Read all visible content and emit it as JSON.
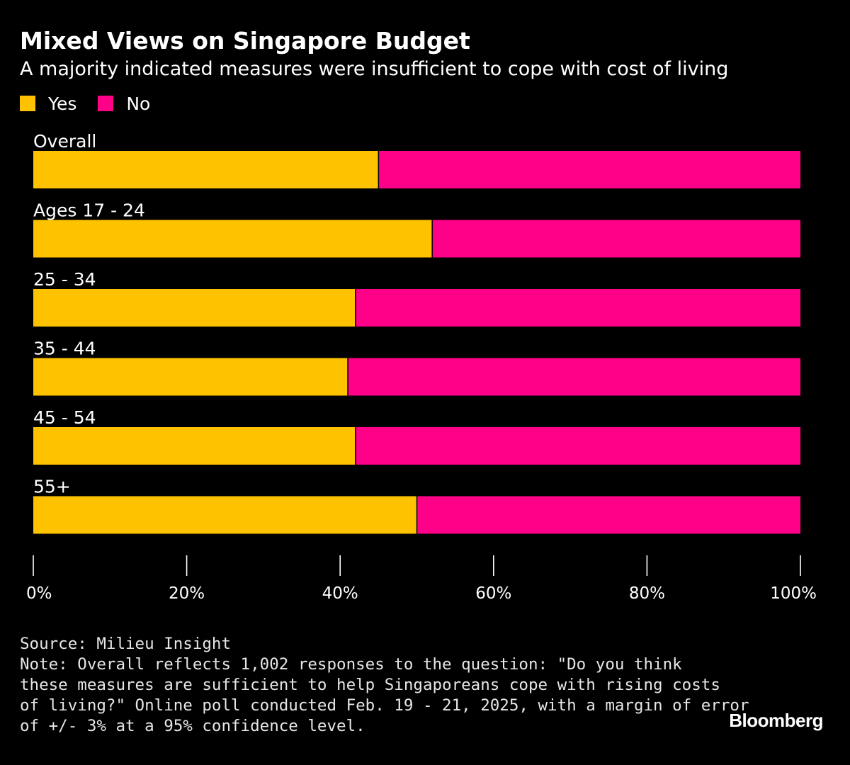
{
  "chart_data": {
    "type": "bar",
    "orientation": "horizontal",
    "stacked": true,
    "title": "Mixed Views on Singapore Budget",
    "subtitle": "A majority indicated measures were insufficient to cope with cost of living",
    "categories": [
      "Overall",
      "Ages 17 - 24",
      "25 - 34",
      "35 - 44",
      "45 - 54",
      "55+"
    ],
    "series": [
      {
        "name": "Yes",
        "color": "#FFC200",
        "values": [
          45,
          52,
          42,
          41,
          42,
          50
        ]
      },
      {
        "name": "No",
        "color": "#FF0088",
        "values": [
          55,
          48,
          58,
          59,
          58,
          50
        ]
      }
    ],
    "xlim": [
      0,
      100
    ],
    "xticks": [
      0,
      20,
      40,
      60,
      80,
      100
    ],
    "xtick_labels": [
      "0%",
      "20%",
      "40%",
      "60%",
      "80%",
      "100%"
    ],
    "legend_position": "top-left",
    "grid": false
  },
  "footer": {
    "lines": [
      "Source: Milieu Insight",
      "Note: Overall reflects 1,002 responses to the question: \"Do you think",
      "these measures are sufficient to help Singaporeans cope with rising costs",
      "of living?\" Online poll conducted Feb. 19 - 21, 2025, with a margin of error",
      "of +/- 3% at a 95% confidence level."
    ]
  },
  "brand": "Bloomberg",
  "colors": {
    "background": "#000000",
    "text": "#FFFFFF",
    "yes": "#FFC200",
    "no": "#FF0088"
  }
}
